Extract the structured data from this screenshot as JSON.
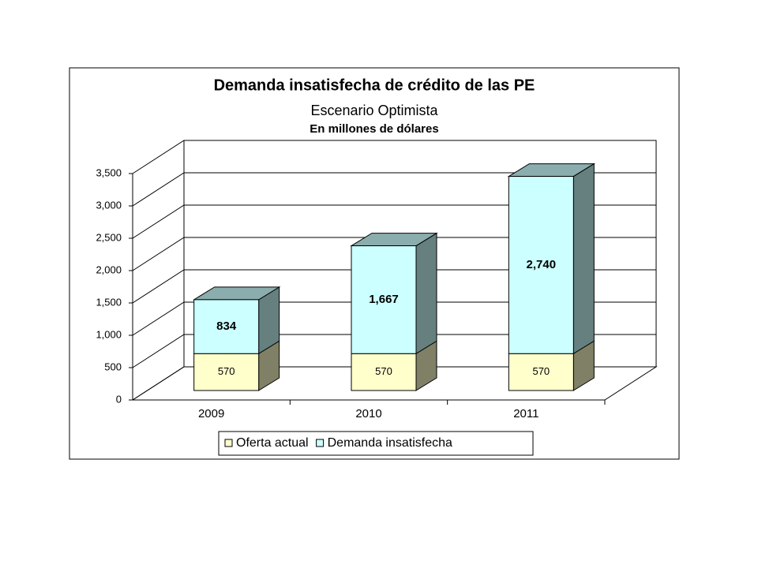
{
  "chart_data": {
    "type": "bar3d_stacked",
    "title": "Demanda insatisfecha de crédito de las PE",
    "subtitle": "Escenario Optimista",
    "subtitle2": "En millones de dólares",
    "categories": [
      "2009",
      "2010",
      "2011"
    ],
    "series": [
      {
        "name": "Oferta actual",
        "color": "#ffffcc",
        "values": [
          570,
          570,
          570
        ]
      },
      {
        "name": "Demanda insatisfecha",
        "color": "#ccffff",
        "values": [
          834,
          1667,
          2740
        ],
        "value_labels": [
          "834",
          "1,667",
          "2,740"
        ]
      }
    ],
    "ylim": [
      0,
      3500
    ],
    "yticks": [
      0,
      500,
      {
        "value": 1000,
        "label": "1,000"
      },
      {
        "value": 1500,
        "label": "1,500"
      },
      {
        "value": 2000,
        "label": "2,000"
      },
      {
        "value": 2500,
        "label": "2,500"
      },
      {
        "value": 3000,
        "label": "3,000"
      },
      {
        "value": 3500,
        "label": "3,500"
      }
    ],
    "grid": true,
    "legend": "bottom"
  }
}
